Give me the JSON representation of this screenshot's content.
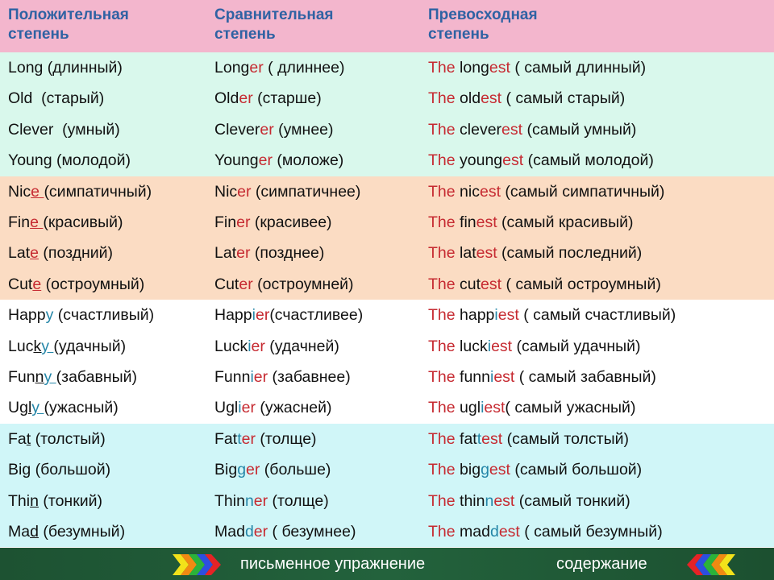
{
  "header": [
    "Положительная\nстепень",
    "Сравнительная\nстепень",
    "Превосходная\nстепень"
  ],
  "colors": {
    "red": "#c62a31",
    "teal": "#2486a8",
    "header_text": "#2f62a3",
    "header_bg": "#f3b6cd",
    "group_bgs": [
      "#d9f8ec",
      "#fbdcc3",
      "#ffffff",
      "#d0f6f8"
    ],
    "footer_bg": "#1f5a36"
  },
  "rows": [
    {
      "g": 0,
      "cells": [
        [
          [
            "Long (длинный)",
            "k"
          ]
        ],
        [
          [
            "Long",
            "k"
          ],
          [
            "er",
            "r"
          ],
          [
            " ( длиннее)",
            "k"
          ]
        ],
        [
          [
            "The",
            "r"
          ],
          [
            " long",
            "k"
          ],
          [
            "est",
            "r"
          ],
          [
            " ( самый длинный)",
            "k"
          ]
        ]
      ]
    },
    {
      "g": 0,
      "cells": [
        [
          [
            "Old  (старый)",
            "k"
          ]
        ],
        [
          [
            "Old",
            "k"
          ],
          [
            "er",
            "r"
          ],
          [
            " (старше)",
            "k"
          ]
        ],
        [
          [
            "The",
            "r"
          ],
          [
            " old",
            "k"
          ],
          [
            "est",
            "r"
          ],
          [
            " ( самый старый)",
            "k"
          ]
        ]
      ]
    },
    {
      "g": 0,
      "cells": [
        [
          [
            "Clever  (умный)",
            "k"
          ]
        ],
        [
          [
            "Clever",
            "k"
          ],
          [
            "er",
            "r"
          ],
          [
            " (умнее)",
            "k"
          ]
        ],
        [
          [
            "The",
            "r"
          ],
          [
            " clever",
            "k"
          ],
          [
            "est",
            "r"
          ],
          [
            " (самый умный)",
            "k"
          ]
        ]
      ]
    },
    {
      "g": 0,
      "cells": [
        [
          [
            "Young (молодой)",
            "k"
          ]
        ],
        [
          [
            "Young",
            "k"
          ],
          [
            "er",
            "r"
          ],
          [
            " (моложе)",
            "k"
          ]
        ],
        [
          [
            "The",
            "r"
          ],
          [
            " young",
            "k"
          ],
          [
            "est",
            "r"
          ],
          [
            " (самый молодой)",
            "k"
          ]
        ]
      ]
    },
    {
      "g": 1,
      "cells": [
        [
          [
            "Nic",
            "k"
          ],
          [
            "e ",
            "r",
            1
          ],
          [
            "(симпатичный)",
            "k"
          ]
        ],
        [
          [
            "Nic",
            "k"
          ],
          [
            "er",
            "r"
          ],
          [
            " (симпатичнее)",
            "k"
          ]
        ],
        [
          [
            "The",
            "r"
          ],
          [
            " nic",
            "k"
          ],
          [
            "est",
            "r"
          ],
          [
            " (самый симпатичный)",
            "k"
          ]
        ]
      ]
    },
    {
      "g": 1,
      "cells": [
        [
          [
            "Fin",
            "k"
          ],
          [
            "e ",
            "r",
            1
          ],
          [
            "(красивый)",
            "k"
          ]
        ],
        [
          [
            "Fin",
            "k"
          ],
          [
            "er",
            "r"
          ],
          [
            " (красивее)",
            "k"
          ]
        ],
        [
          [
            "The",
            "r"
          ],
          [
            " fin",
            "k"
          ],
          [
            "est",
            "r"
          ],
          [
            " (самый красивый)",
            "k"
          ]
        ]
      ]
    },
    {
      "g": 1,
      "cells": [
        [
          [
            "Lat",
            "k"
          ],
          [
            "e",
            "r",
            1
          ],
          [
            " (поздний)",
            "k"
          ]
        ],
        [
          [
            "Lat",
            "k"
          ],
          [
            "er",
            "r"
          ],
          [
            " (позднее)",
            "k"
          ]
        ],
        [
          [
            "The",
            "r"
          ],
          [
            " lat",
            "k"
          ],
          [
            "est",
            "r"
          ],
          [
            " (самый последний)",
            "k"
          ]
        ]
      ]
    },
    {
      "g": 1,
      "cells": [
        [
          [
            "Cut",
            "k"
          ],
          [
            "e",
            "r",
            1
          ],
          [
            " (остроумный)",
            "k"
          ]
        ],
        [
          [
            "Cut",
            "k"
          ],
          [
            "er",
            "r"
          ],
          [
            " (остроумней)",
            "k"
          ]
        ],
        [
          [
            "The",
            "r"
          ],
          [
            " cut",
            "k"
          ],
          [
            "est",
            "r"
          ],
          [
            " ( самый остроумный)",
            "k"
          ]
        ]
      ]
    },
    {
      "g": 2,
      "cells": [
        [
          [
            "Happ",
            "k"
          ],
          [
            "y",
            "b"
          ],
          [
            " (счастливый)",
            "k"
          ]
        ],
        [
          [
            "Happ",
            "k"
          ],
          [
            "i",
            "b"
          ],
          [
            "er",
            "r"
          ],
          [
            "(счастливее)",
            "k"
          ]
        ],
        [
          [
            "The",
            "r"
          ],
          [
            " happ",
            "k"
          ],
          [
            "i",
            "b"
          ],
          [
            "est",
            "r"
          ],
          [
            " ( самый счастливый)",
            "k"
          ]
        ]
      ]
    },
    {
      "g": 2,
      "cells": [
        [
          [
            "Luc",
            "k"
          ],
          [
            "k",
            "k",
            1
          ],
          [
            "y ",
            "b",
            1
          ],
          [
            "(удачный)",
            "k"
          ]
        ],
        [
          [
            "Luck",
            "k"
          ],
          [
            "i",
            "b"
          ],
          [
            "er",
            "r"
          ],
          [
            " (удачней)",
            "k"
          ]
        ],
        [
          [
            "The",
            "r"
          ],
          [
            " luck",
            "k"
          ],
          [
            "i",
            "b"
          ],
          [
            "est",
            "r"
          ],
          [
            " (самый удачный)",
            "k"
          ]
        ]
      ]
    },
    {
      "g": 2,
      "cells": [
        [
          [
            "Fun",
            "k"
          ],
          [
            "n",
            "k",
            1
          ],
          [
            "y ",
            "b",
            1
          ],
          [
            "(забавный)",
            "k"
          ]
        ],
        [
          [
            "Funn",
            "k"
          ],
          [
            "i",
            "b"
          ],
          [
            "er",
            "r"
          ],
          [
            " (забавнее)",
            "k"
          ]
        ],
        [
          [
            "The",
            "r"
          ],
          [
            " funn",
            "k"
          ],
          [
            "i",
            "b"
          ],
          [
            "est",
            "r"
          ],
          [
            " ( самый забавный)",
            "k"
          ]
        ]
      ]
    },
    {
      "g": 2,
      "cells": [
        [
          [
            "Ug",
            "k"
          ],
          [
            "l",
            "k",
            1
          ],
          [
            "y ",
            "b",
            1
          ],
          [
            "(ужасный)",
            "k"
          ]
        ],
        [
          [
            "Ugl",
            "k"
          ],
          [
            "i",
            "b"
          ],
          [
            "er",
            "r"
          ],
          [
            " (ужасней)",
            "k"
          ]
        ],
        [
          [
            "The",
            "r"
          ],
          [
            " ugl",
            "k"
          ],
          [
            "i",
            "b"
          ],
          [
            "est",
            "r"
          ],
          [
            "( самый ужасный)",
            "k"
          ]
        ]
      ]
    },
    {
      "g": 3,
      "cells": [
        [
          [
            "Fa",
            "k"
          ],
          [
            "t",
            "k",
            1
          ],
          [
            " (толстый)",
            "k"
          ]
        ],
        [
          [
            "Fat",
            "k"
          ],
          [
            "t",
            "b"
          ],
          [
            "er",
            "r"
          ],
          [
            " (толще)",
            "k"
          ]
        ],
        [
          [
            "The",
            "r"
          ],
          [
            " fat",
            "k"
          ],
          [
            "t",
            "b"
          ],
          [
            "est",
            "r"
          ],
          [
            " (самый толстый)",
            "k"
          ]
        ]
      ]
    },
    {
      "g": 3,
      "cells": [
        [
          [
            "Bi",
            "k"
          ],
          [
            "g",
            "k",
            1
          ],
          [
            " (большой)",
            "k"
          ]
        ],
        [
          [
            "Big",
            "k"
          ],
          [
            "g",
            "b"
          ],
          [
            "er",
            "r"
          ],
          [
            " (больше)",
            "k"
          ]
        ],
        [
          [
            "The",
            "r"
          ],
          [
            " big",
            "k"
          ],
          [
            "g",
            "b"
          ],
          [
            "est",
            "r"
          ],
          [
            " (самый большой)",
            "k"
          ]
        ]
      ]
    },
    {
      "g": 3,
      "cells": [
        [
          [
            "Thi",
            "k"
          ],
          [
            "n",
            "k",
            1
          ],
          [
            " (тонкий)",
            "k"
          ]
        ],
        [
          [
            "Thin",
            "k"
          ],
          [
            "n",
            "b"
          ],
          [
            "er",
            "r"
          ],
          [
            " (толще)",
            "k"
          ]
        ],
        [
          [
            "The",
            "r"
          ],
          [
            " thin",
            "k"
          ],
          [
            "n",
            "b"
          ],
          [
            "est",
            "r"
          ],
          [
            " (самый тонкий)",
            "k"
          ]
        ]
      ]
    },
    {
      "g": 3,
      "cells": [
        [
          [
            "Ma",
            "k"
          ],
          [
            "d",
            "k",
            1
          ],
          [
            " (безумный)",
            "k"
          ]
        ],
        [
          [
            "Mad",
            "k"
          ],
          [
            "d",
            "b"
          ],
          [
            "er",
            "r"
          ],
          [
            " ( безумнее)",
            "k"
          ]
        ],
        [
          [
            "The",
            "r"
          ],
          [
            " mad",
            "k"
          ],
          [
            "d",
            "b"
          ],
          [
            "est",
            "r"
          ],
          [
            " ( самый безумный)",
            "k"
          ]
        ]
      ]
    }
  ],
  "footer": {
    "exercise_link": "письменное упражнение",
    "contents_link": "содержание",
    "next_icon": "multicolor-chevrons-right",
    "prev_icon": "multicolor-chevrons-left"
  }
}
